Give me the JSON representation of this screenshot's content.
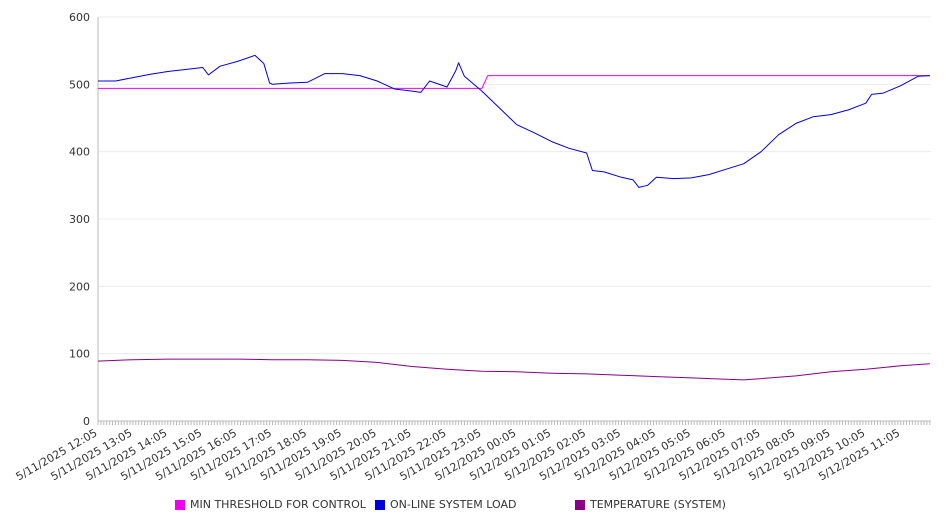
{
  "chart_data": {
    "type": "line",
    "ylim": [
      0,
      600
    ],
    "y_ticks": [
      "0",
      "100",
      "200",
      "300",
      "400",
      "500",
      "600"
    ],
    "x_tick_labels": [
      "5/11/2025 12:05",
      "5/11/2025 13:05",
      "5/11/2025 14:05",
      "5/11/2025 15:05",
      "5/11/2025 16:05",
      "5/11/2025 17:05",
      "5/11/2025 18:05",
      "5/11/2025 19:05",
      "5/11/2025 20:05",
      "5/11/2025 21:05",
      "5/11/2025 22:05",
      "5/11/2025 23:05",
      "5/12/2025 00:05",
      "5/12/2025 01:05",
      "5/12/2025 02:05",
      "5/12/2025 03:05",
      "5/12/2025 04:05",
      "5/12/2025 05:05",
      "5/12/2025 06:05",
      "5/12/2025 07:05",
      "5/12/2025 08:05",
      "5/12/2025 09:05",
      "5/12/2025 10:05",
      "5/12/2025 11:05"
    ],
    "grid": true,
    "legend_position": "bottom",
    "series": [
      {
        "name": "MIN THRESHOLD FOR CONTROL",
        "color": "#ee00ee",
        "points": [
          [
            "5/11/2025 12:05",
            494
          ],
          [
            "5/11/2025 23:05",
            494
          ],
          [
            "5/11/2025 23:15",
            513
          ],
          [
            "5/12/2025 11:55",
            513
          ]
        ]
      },
      {
        "name": "ON-LINE SYSTEM LOAD",
        "color": "#0000dd",
        "points": [
          [
            "5/11/2025 12:05",
            505
          ],
          [
            "5/11/2025 12:35",
            505
          ],
          [
            "5/11/2025 13:05",
            510
          ],
          [
            "5/11/2025 13:35",
            515
          ],
          [
            "5/11/2025 14:05",
            519
          ],
          [
            "5/11/2025 14:35",
            522
          ],
          [
            "5/11/2025 15:05",
            525
          ],
          [
            "5/11/2025 15:15",
            514
          ],
          [
            "5/11/2025 15:35",
            527
          ],
          [
            "5/11/2025 16:05",
            534
          ],
          [
            "5/11/2025 16:35",
            543
          ],
          [
            "5/11/2025 16:50",
            531
          ],
          [
            "5/11/2025 17:00",
            502
          ],
          [
            "5/11/2025 17:05",
            500
          ],
          [
            "5/11/2025 17:35",
            502
          ],
          [
            "5/11/2025 18:05",
            503
          ],
          [
            "5/11/2025 18:35",
            516
          ],
          [
            "5/11/2025 19:05",
            516
          ],
          [
            "5/11/2025 19:35",
            513
          ],
          [
            "5/11/2025 20:05",
            505
          ],
          [
            "5/11/2025 20:35",
            493
          ],
          [
            "5/11/2025 21:05",
            490
          ],
          [
            "5/11/2025 21:20",
            488
          ],
          [
            "5/11/2025 21:35",
            505
          ],
          [
            "5/11/2025 22:05",
            496
          ],
          [
            "5/11/2025 22:20",
            520
          ],
          [
            "5/11/2025 22:25",
            532
          ],
          [
            "5/11/2025 22:35",
            512
          ],
          [
            "5/11/2025 23:05",
            490
          ],
          [
            "5/11/2025 23:35",
            465
          ],
          [
            "5/12/2025 00:05",
            440
          ],
          [
            "5/12/2025 00:35",
            428
          ],
          [
            "5/12/2025 01:05",
            415
          ],
          [
            "5/12/2025 01:35",
            405
          ],
          [
            "5/12/2025 02:05",
            398
          ],
          [
            "5/12/2025 02:15",
            372
          ],
          [
            "5/12/2025 02:35",
            370
          ],
          [
            "5/12/2025 03:05",
            362
          ],
          [
            "5/12/2025 03:25",
            358
          ],
          [
            "5/12/2025 03:35",
            347
          ],
          [
            "5/12/2025 03:50",
            350
          ],
          [
            "5/12/2025 04:05",
            362
          ],
          [
            "5/12/2025 04:35",
            360
          ],
          [
            "5/12/2025 05:05",
            361
          ],
          [
            "5/12/2025 05:35",
            366
          ],
          [
            "5/12/2025 06:05",
            374
          ],
          [
            "5/12/2025 06:35",
            382
          ],
          [
            "5/12/2025 07:05",
            400
          ],
          [
            "5/12/2025 07:35",
            425
          ],
          [
            "5/12/2025 08:05",
            442
          ],
          [
            "5/12/2025 08:35",
            452
          ],
          [
            "5/12/2025 09:05",
            455
          ],
          [
            "5/12/2025 09:35",
            462
          ],
          [
            "5/12/2025 10:05",
            472
          ],
          [
            "5/12/2025 10:15",
            485
          ],
          [
            "5/12/2025 10:35",
            487
          ],
          [
            "5/12/2025 11:05",
            498
          ],
          [
            "5/12/2025 11:35",
            512
          ],
          [
            "5/12/2025 11:55",
            513
          ]
        ]
      },
      {
        "name": "TEMPERATURE (SYSTEM)",
        "color": "#880088",
        "points": [
          [
            "5/11/2025 12:05",
            89
          ],
          [
            "5/11/2025 13:05",
            91
          ],
          [
            "5/11/2025 14:05",
            92
          ],
          [
            "5/11/2025 15:05",
            92
          ],
          [
            "5/11/2025 16:05",
            92
          ],
          [
            "5/11/2025 17:05",
            91
          ],
          [
            "5/11/2025 18:05",
            91
          ],
          [
            "5/11/2025 19:05",
            90
          ],
          [
            "5/11/2025 20:05",
            87
          ],
          [
            "5/11/2025 21:05",
            81
          ],
          [
            "5/11/2025 22:05",
            77
          ],
          [
            "5/11/2025 23:05",
            74
          ],
          [
            "5/12/2025 00:05",
            73
          ],
          [
            "5/12/2025 01:05",
            71
          ],
          [
            "5/12/2025 02:05",
            70
          ],
          [
            "5/12/2025 03:05",
            68
          ],
          [
            "5/12/2025 04:05",
            66
          ],
          [
            "5/12/2025 05:05",
            64
          ],
          [
            "5/12/2025 06:05",
            62
          ],
          [
            "5/12/2025 06:35",
            61
          ],
          [
            "5/12/2025 07:05",
            63
          ],
          [
            "5/12/2025 08:05",
            67
          ],
          [
            "5/12/2025 09:05",
            73
          ],
          [
            "5/12/2025 10:05",
            77
          ],
          [
            "5/12/2025 11:05",
            82
          ],
          [
            "5/12/2025 11:55",
            85
          ]
        ]
      }
    ]
  }
}
